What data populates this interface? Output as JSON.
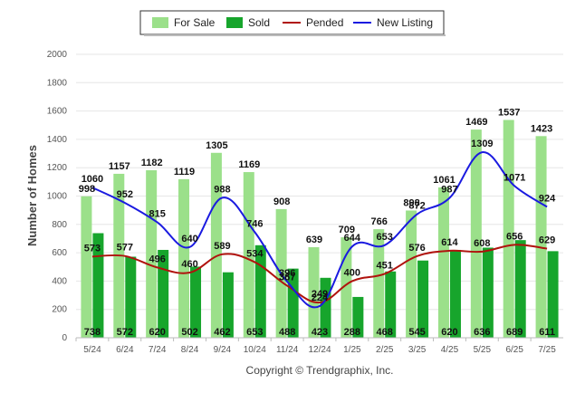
{
  "colors": {
    "for_sale": "#9be08a",
    "sold": "#17a52c",
    "pended": "#b0120d",
    "new_listing": "#1a1ae0",
    "grid": "#e6e6e6"
  },
  "copyright": "Copyright © Trendgraphix, Inc.",
  "chart_data": {
    "type": "bar",
    "title": "",
    "xlabel": "",
    "ylabel": "Number of Homes",
    "ylim": [
      0,
      2000
    ],
    "yticks": [
      0,
      200,
      400,
      600,
      800,
      1000,
      1200,
      1400,
      1600,
      1800,
      2000
    ],
    "grid": true,
    "legend_position": "top-center",
    "categories": [
      "5/24",
      "6/24",
      "7/24",
      "8/24",
      "9/24",
      "10/24",
      "11/24",
      "12/24",
      "1/25",
      "2/25",
      "3/25",
      "4/25",
      "5/25",
      "6/25",
      "7/25"
    ],
    "series": [
      {
        "name": "For Sale",
        "kind": "bar",
        "values": [
          998,
          1157,
          1182,
          1119,
          1305,
          1169,
          908,
          639,
          709,
          766,
          898,
          1061,
          1469,
          1537,
          1423
        ]
      },
      {
        "name": "Sold",
        "kind": "bar",
        "values": [
          738,
          572,
          620,
          502,
          462,
          653,
          488,
          423,
          288,
          468,
          545,
          620,
          636,
          689,
          611
        ]
      },
      {
        "name": "Pended",
        "kind": "line",
        "values": [
          573,
          577,
          496,
          460,
          589,
          534,
          367,
          249,
          400,
          451,
          576,
          614,
          608,
          656,
          629
        ]
      },
      {
        "name": "New Listing",
        "kind": "line",
        "values": [
          1060,
          952,
          815,
          640,
          988,
          746,
          396,
          224,
          644,
          653,
          872,
          987,
          1309,
          1071,
          924
        ]
      }
    ]
  }
}
